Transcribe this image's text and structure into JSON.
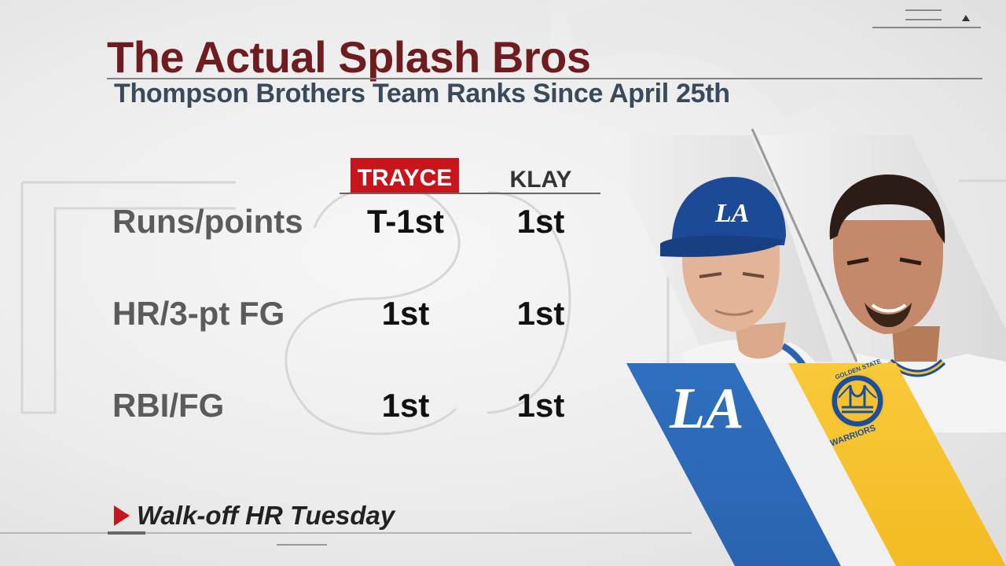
{
  "title": "The Actual Splash Bros",
  "subtitle": "Thompson Brothers Team Ranks Since April 25th",
  "columns": {
    "trayce": "TRAYCE",
    "klay": "KLAY"
  },
  "rows": [
    {
      "label": "Runs/points",
      "trayce": "T-1st",
      "klay": "1st"
    },
    {
      "label": "HR/3-pt FG",
      "trayce": "1st",
      "klay": "1st"
    },
    {
      "label": "RBI/FG",
      "trayce": "1st",
      "klay": "1st"
    }
  ],
  "footnote": "Walk-off HR Tuesday",
  "logos": {
    "dodgers_text": "LA",
    "warriors_top": "GOLDEN STATE",
    "warriors_bottom": "WARRIORS"
  },
  "colors": {
    "title": "#6e1c1f",
    "accent_red": "#c8141b",
    "dodgers_blue": "#2a64b0",
    "warriors_gold": "#f6c12e",
    "warriors_blue": "#1d4e9c"
  }
}
